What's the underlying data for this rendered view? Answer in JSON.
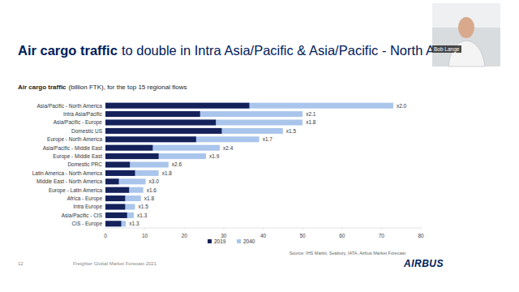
{
  "slide": {
    "title_bold": "Air cargo traffic",
    "title_rest": "to double in Intra Asia/Pacific & Asia/Pacific - North America",
    "page": "12",
    "footer": "Freighter Global Market Forecast 2021",
    "source": "Source: IHS Markit, Seabury, IATA, Airbus Market Forecast",
    "logo": "AIRBUS",
    "presenter": "Bob Lange"
  },
  "chart_data": {
    "type": "bar",
    "orientation": "horizontal",
    "stacked": false,
    "grid": false,
    "legend": "bottom",
    "data_labels": false,
    "title": "Air cargo traffic",
    "subtitle": "(billion FTK), for the top 15 regional flows",
    "categories": [
      "Asia/Pacific - North America",
      "Intra Asia/Pacific",
      "Asia/Pacific - Europe",
      "Domestic US",
      "Europe - North America",
      "Asia/Pacific - Middle East",
      "Europe - Middle East",
      "Domestic PRC",
      "Latin America - North America",
      "Middle East - North America",
      "Europe - Latin America",
      "Africa - Europe",
      "Intra Europe",
      "Asia/Pacific - CIS",
      "CIS - Europe"
    ],
    "series": [
      {
        "name": "2019",
        "color": "#14215a",
        "values": [
          36.5,
          24,
          28,
          29.5,
          23,
          12,
          13.5,
          6.2,
          7.5,
          3.4,
          6,
          5,
          5,
          5.5,
          4
        ]
      },
      {
        "name": "2040",
        "color": "#a9c5ec",
        "values": [
          73,
          50,
          50,
          45,
          39,
          29,
          25.5,
          16,
          13.5,
          10.2,
          9.6,
          9,
          7.5,
          7.2,
          5.2
        ]
      }
    ],
    "annotations": [
      "x2.0",
      "x2.1",
      "x1.8",
      "x1.5",
      "x1.7",
      "x2.4",
      "x1.9",
      "x2.6",
      "x1.8",
      "x3.0",
      "x1.6",
      "x1.8",
      "x1.5",
      "x1.3",
      "x1.3"
    ],
    "xlim": [
      0,
      80
    ],
    "xticks": [
      0,
      10,
      20,
      30,
      40,
      50,
      60,
      70,
      80
    ]
  }
}
